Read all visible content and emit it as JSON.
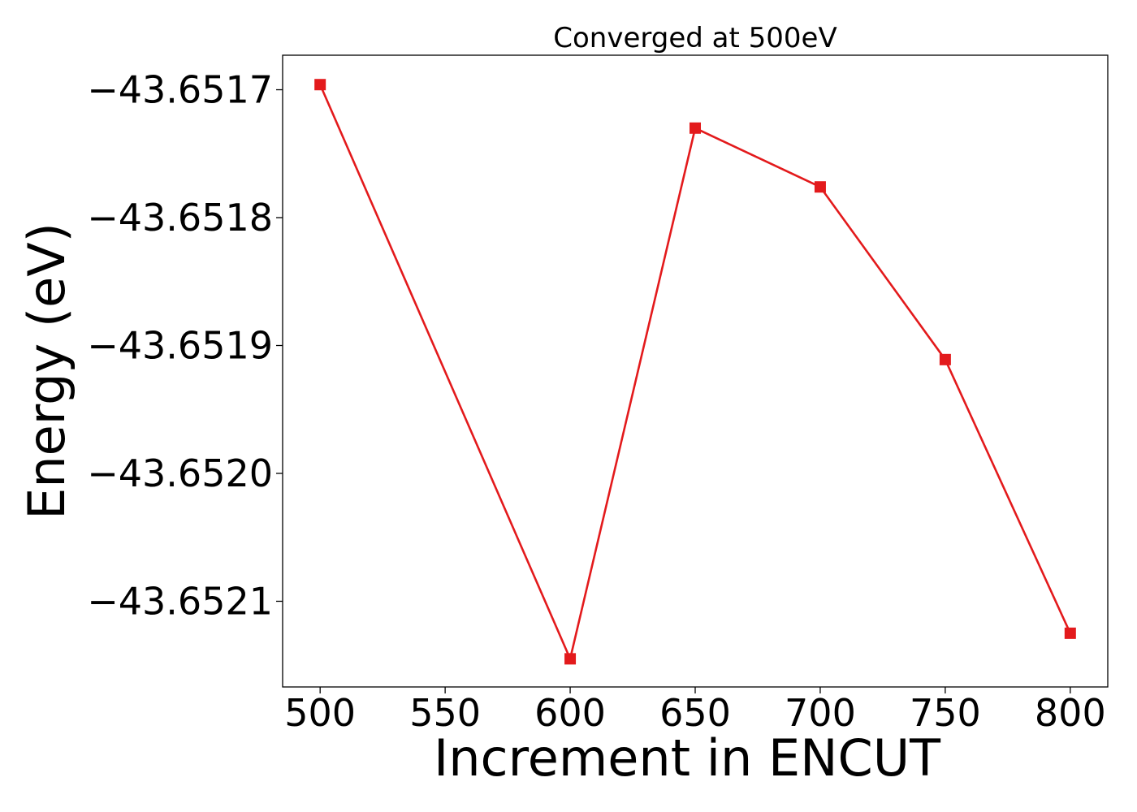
{
  "chart_data": {
    "type": "line",
    "title": "Converged at 500eV",
    "xlabel": "Increment in ENCUT",
    "ylabel": "Energy (eV)",
    "x": [
      500,
      600,
      650,
      700,
      750,
      800
    ],
    "series": [
      {
        "values": [
          -43.651696,
          -43.652145,
          -43.65173,
          -43.651776,
          -43.651911,
          -43.652125
        ]
      }
    ],
    "xlim": [
      485,
      815
    ],
    "ylim": [
      -43.652167,
      -43.651673
    ],
    "xticks": [
      500,
      550,
      600,
      650,
      700,
      750,
      800
    ],
    "xtick_labels": [
      "500",
      "550",
      "600",
      "650",
      "700",
      "750",
      "800"
    ],
    "yticks": [
      -43.6517,
      -43.6518,
      -43.6519,
      -43.652,
      -43.6521
    ],
    "ytick_labels": [
      "−43.6517",
      "−43.6518",
      "−43.6519",
      "−43.6520",
      "−43.6521"
    ],
    "grid": false,
    "line_color": "#e31a1c",
    "marker": "square"
  }
}
